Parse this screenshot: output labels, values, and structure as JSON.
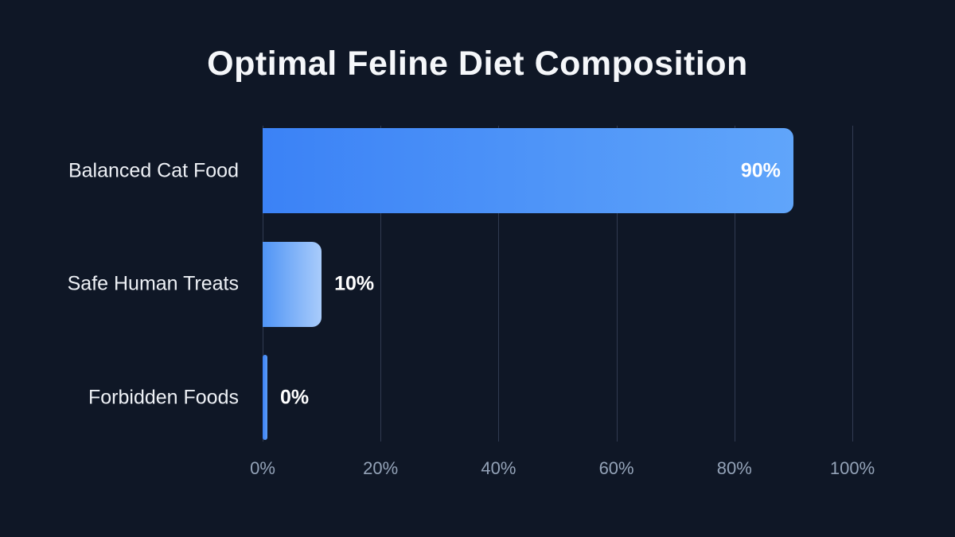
{
  "title": "Optimal Feline Diet Composition",
  "chart_data": {
    "type": "bar",
    "orientation": "horizontal",
    "title": "Optimal Feline Diet Composition",
    "categories": [
      "Balanced Cat Food",
      "Safe Human Treats",
      "Forbidden Foods"
    ],
    "values": [
      90,
      10,
      0
    ],
    "value_labels": [
      "90%",
      "10%",
      "0%"
    ],
    "xlabel": "",
    "ylabel": "",
    "xlim": [
      0,
      100
    ],
    "x_ticks": [
      0,
      20,
      40,
      60,
      80,
      100
    ],
    "x_tick_labels": [
      "0%",
      "20%",
      "40%",
      "60%",
      "80%",
      "100%"
    ],
    "grid": true,
    "legend": false
  },
  "colors": {
    "background": "#0f1726",
    "title_text": "#f5f7fa",
    "category_text": "#eef1f6",
    "value_text": "#ffffff",
    "tick_text": "#94a3b8",
    "gridline": "#313b52",
    "bar_gradients": [
      {
        "from": "#3b82f6",
        "to": "#60a5fa"
      },
      {
        "from": "#4f94f5",
        "to": "#a9ccfb"
      },
      {
        "from": "#3b82f6",
        "to": "#5b9bf5"
      }
    ]
  }
}
